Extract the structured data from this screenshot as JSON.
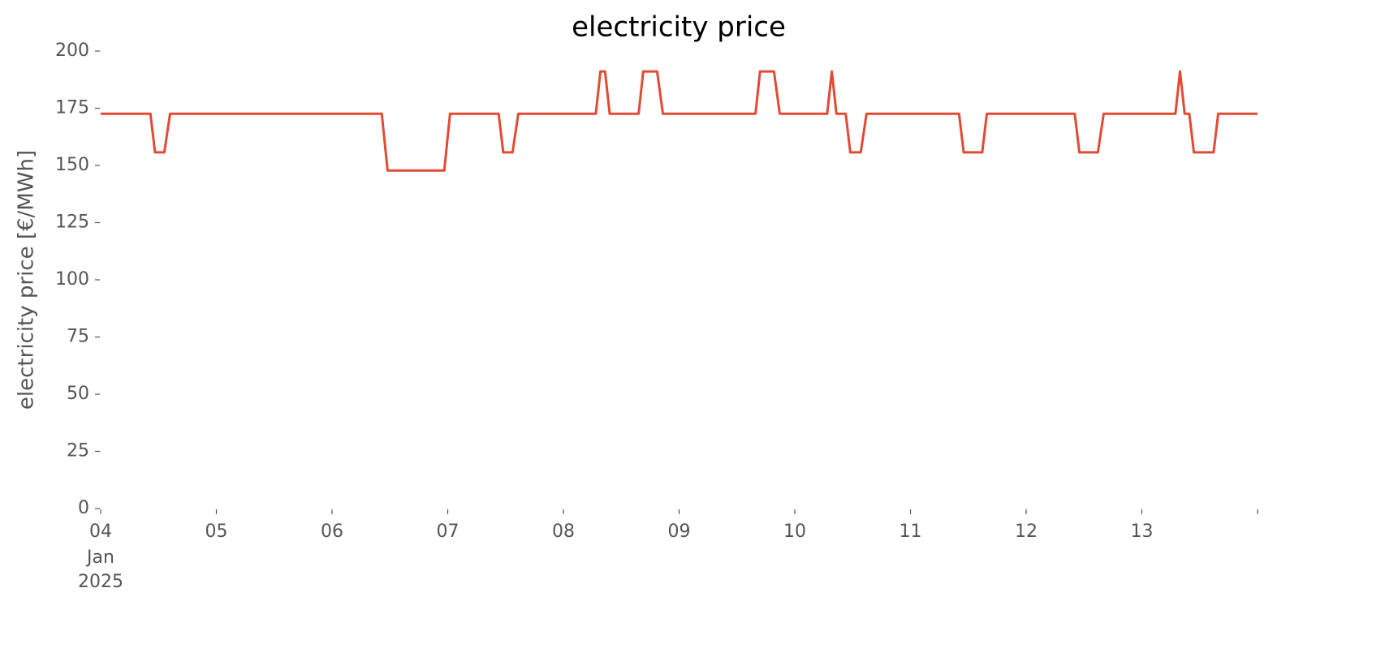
{
  "chart_data": {
    "type": "line",
    "title": "electricity price",
    "ylabel": "electricity price [€/MWh]",
    "x_sublabels": [
      "Jan",
      "2025"
    ],
    "x": [
      4.0,
      4.43,
      4.47,
      4.55,
      4.6,
      6.43,
      6.48,
      6.97,
      7.02,
      7.44,
      7.48,
      7.56,
      7.61,
      8.28,
      8.32,
      8.36,
      8.4,
      8.65,
      8.69,
      8.81,
      8.86,
      9.66,
      9.7,
      9.82,
      9.87,
      10.28,
      10.32,
      10.36,
      10.44,
      10.48,
      10.57,
      10.62,
      11.42,
      11.46,
      11.62,
      11.66,
      12.42,
      12.46,
      12.62,
      12.67,
      13.29,
      13.33,
      13.37,
      13.41,
      13.45,
      13.62,
      13.66,
      14.0
    ],
    "series": [
      {
        "name": "electricity price",
        "color": "#e24a33",
        "values": [
          172.6,
          172.6,
          155.7,
          155.7,
          172.6,
          172.6,
          147.8,
          147.8,
          172.6,
          172.6,
          155.7,
          155.7,
          172.6,
          172.6,
          191.1,
          191.1,
          172.6,
          172.6,
          191.1,
          191.1,
          172.6,
          172.6,
          191.1,
          191.1,
          172.6,
          172.6,
          191.1,
          172.6,
          172.6,
          155.7,
          155.7,
          172.6,
          172.6,
          155.7,
          155.7,
          172.6,
          172.6,
          155.7,
          155.7,
          172.6,
          172.6,
          191.1,
          172.6,
          172.6,
          155.7,
          155.7,
          172.6,
          172.6
        ]
      }
    ],
    "xlim": [
      4,
      14
    ],
    "xticks": [
      {
        "value": 4,
        "label": "04"
      },
      {
        "value": 5,
        "label": "05"
      },
      {
        "value": 6,
        "label": "06"
      },
      {
        "value": 7,
        "label": "07"
      },
      {
        "value": 8,
        "label": "08"
      },
      {
        "value": 9,
        "label": "09"
      },
      {
        "value": 10,
        "label": "10"
      },
      {
        "value": 11,
        "label": "11"
      },
      {
        "value": 12,
        "label": "12"
      },
      {
        "value": 13,
        "label": "13"
      },
      {
        "value": 14,
        "label": null
      }
    ],
    "ylim": [
      0,
      200
    ],
    "yticks": [
      0,
      25,
      50,
      75,
      100,
      125,
      150,
      175,
      200
    ],
    "grid": false
  }
}
